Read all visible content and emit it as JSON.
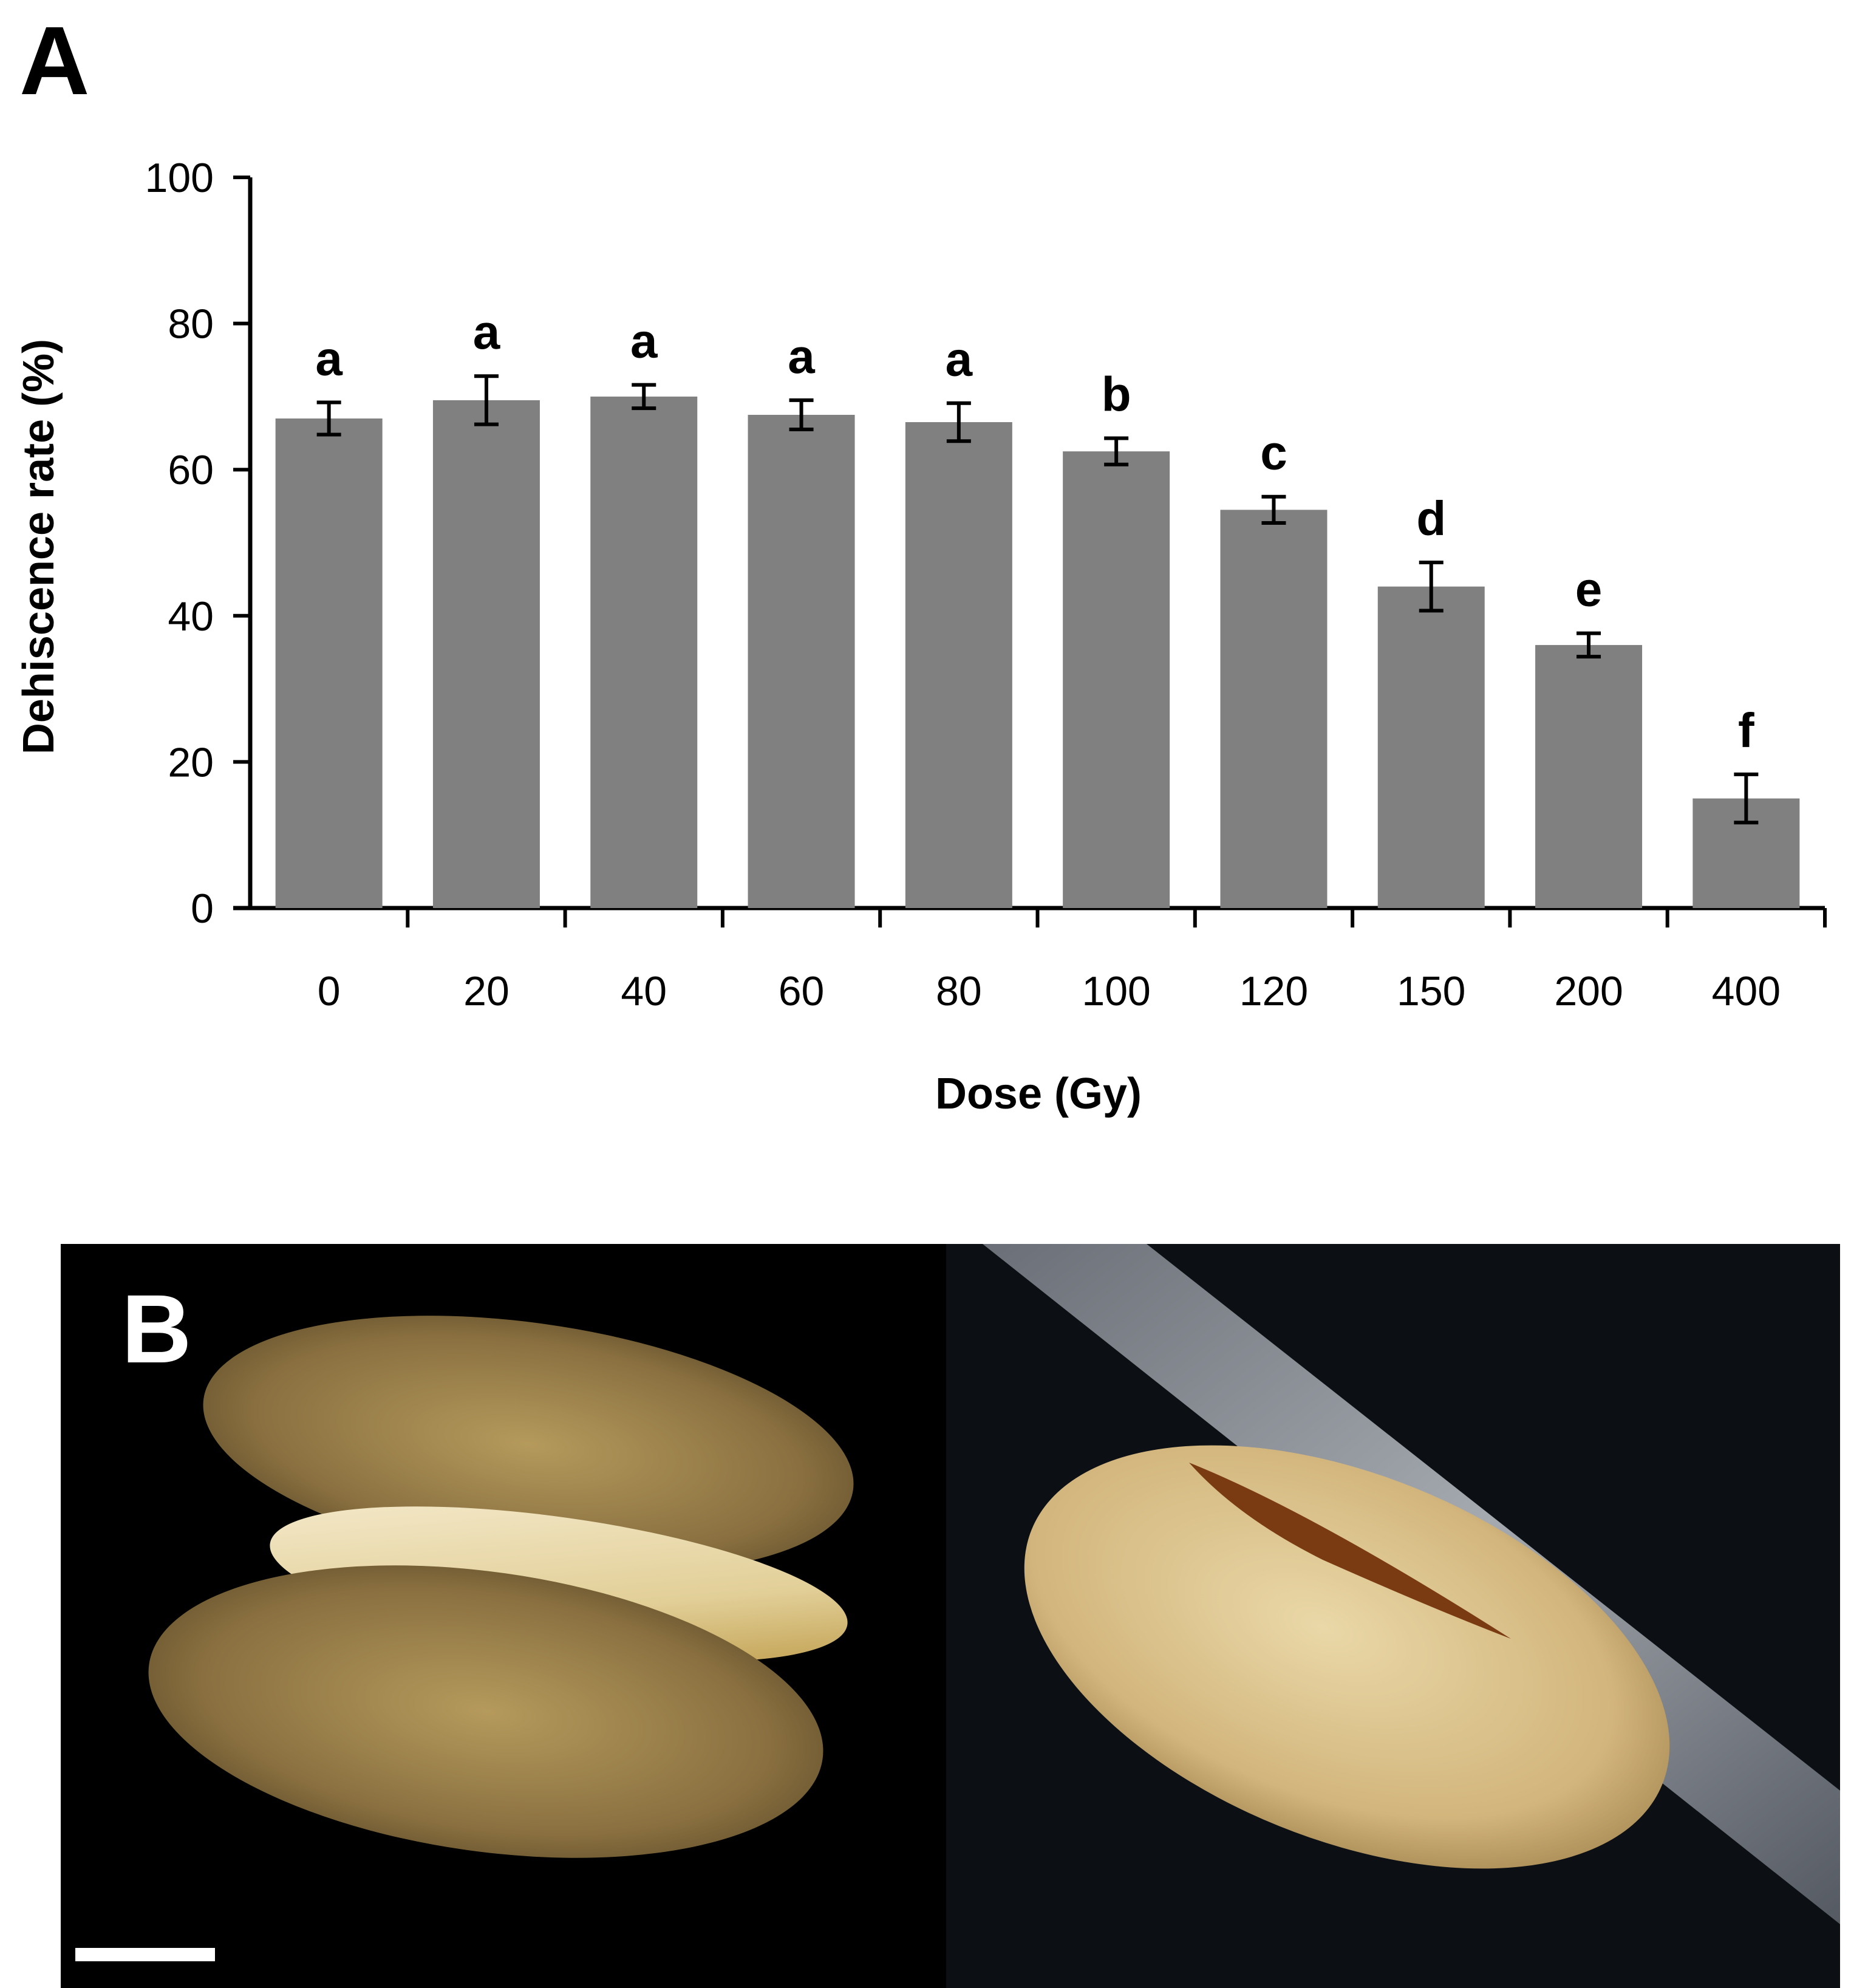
{
  "panels": {
    "a": "A",
    "b": "B"
  },
  "chart_data": {
    "type": "bar",
    "categories": [
      "0",
      "20",
      "40",
      "60",
      "80",
      "100",
      "120",
      "150",
      "200",
      "400"
    ],
    "values": [
      67,
      69.5,
      70,
      67.5,
      66.5,
      62.5,
      54.5,
      44,
      36,
      15
    ],
    "errors": [
      2.2,
      3.3,
      1.6,
      2.0,
      2.6,
      1.8,
      1.8,
      3.3,
      1.6,
      3.3
    ],
    "significance_letters": [
      "a",
      "a",
      "a",
      "a",
      "a",
      "b",
      "c",
      "d",
      "e",
      "f"
    ],
    "xlabel": "Dose (Gy)",
    "ylabel": "Dehiscence rate (%)",
    "ylim": [
      0,
      100
    ],
    "yticks": [
      0,
      20,
      40,
      60,
      80,
      100
    ],
    "grid": false,
    "bar_color": "#808080"
  },
  "photos": {
    "left_description_icon": "dehiscent-seed-photo-icon",
    "right_description_icon": "seed-with-slit-photo-icon",
    "background": "#000000"
  }
}
